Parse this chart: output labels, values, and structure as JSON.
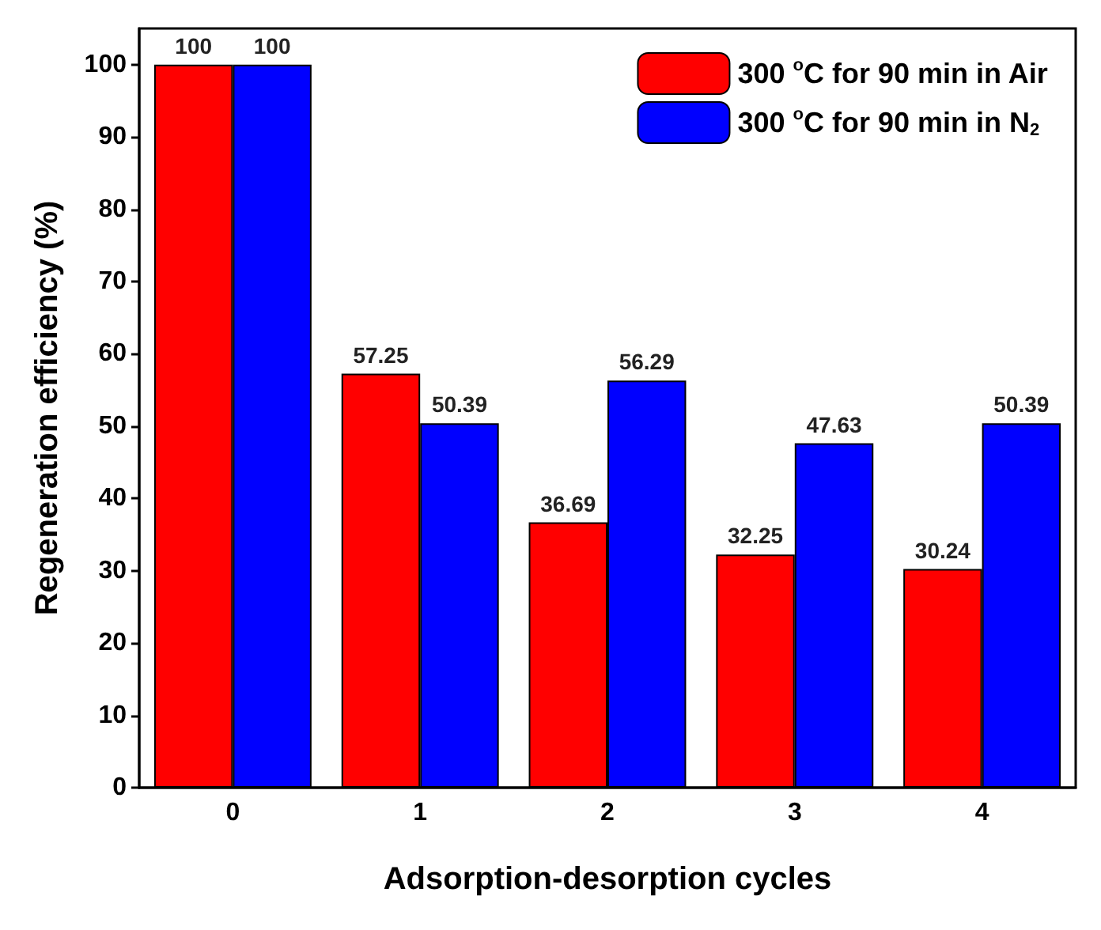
{
  "chart_data": {
    "type": "bar",
    "xlabel": "Adsorption-desorption cycles",
    "ylabel": "Regeneration efficiency (%)",
    "categories": [
      "0",
      "1",
      "2",
      "3",
      "4"
    ],
    "series": [
      {
        "name": "300 $^{o}$C for 90 min in Air",
        "color": "#ff0000",
        "values": [
          100,
          57.25,
          36.69,
          32.25,
          30.24
        ]
      },
      {
        "name": "300 $^{o}$C for 90 min in N$_{2}$",
        "color": "#0000ff",
        "values": [
          100,
          50.39,
          56.29,
          47.63,
          50.39
        ]
      }
    ],
    "ylim": [
      0,
      105
    ],
    "yticks": [
      0,
      10,
      20,
      30,
      40,
      50,
      60,
      70,
      80,
      90,
      100
    ],
    "grid": false,
    "legend": "top right",
    "data_labels": true
  }
}
